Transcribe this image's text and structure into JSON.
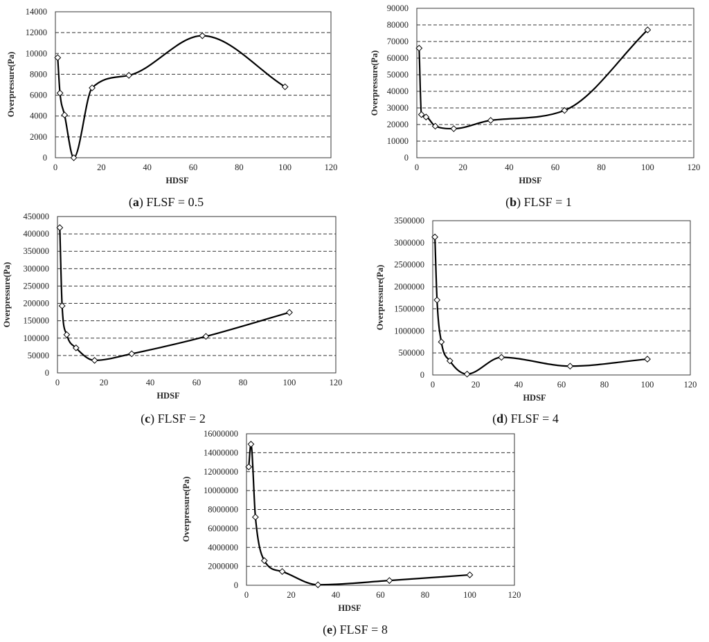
{
  "figure": {
    "panels": [
      {
        "letter": "a",
        "caption_rest": " FLSF = 0.5"
      },
      {
        "letter": "b",
        "caption_rest": " FLSF = 1"
      },
      {
        "letter": "c",
        "caption_rest": " FLSF = 2"
      },
      {
        "letter": "d",
        "caption_rest": " FLSF = 4"
      },
      {
        "letter": "e",
        "caption_rest": " FLSF = 8"
      }
    ]
  },
  "chart_data": [
    {
      "type": "line",
      "title": "(a) FLSF = 0.5",
      "xlabel": "HDSF",
      "ylabel": "Overpressure(Pa)",
      "xlim": [
        0,
        120
      ],
      "ylim": [
        0,
        14000
      ],
      "xticks": [
        0,
        20,
        40,
        60,
        80,
        100,
        120
      ],
      "yticks": [
        0,
        2000,
        4000,
        6000,
        8000,
        10000,
        12000,
        14000
      ],
      "ytick_labels": [
        "0",
        "2000",
        "4000",
        "6000",
        "8000",
        "10000",
        "12000",
        "14000"
      ],
      "grid": true,
      "x": [
        1,
        2,
        4,
        8,
        16,
        32,
        64,
        100
      ],
      "y": [
        9600,
        6200,
        4100,
        0,
        6700,
        7900,
        11700,
        6800
      ]
    },
    {
      "type": "line",
      "title": "(b) FLSF = 1",
      "xlabel": "HDSF",
      "ylabel": "Overpressure(Pa)",
      "xlim": [
        0,
        120
      ],
      "ylim": [
        0,
        90000
      ],
      "xticks": [
        0,
        20,
        40,
        60,
        80,
        100,
        120
      ],
      "yticks": [
        0,
        10000,
        20000,
        30000,
        40000,
        50000,
        60000,
        70000,
        80000,
        90000
      ],
      "ytick_labels": [
        "0",
        "10000",
        "20000",
        "30000",
        "40000",
        "50000",
        "60000",
        "70000",
        "80000",
        "90000"
      ],
      "grid": true,
      "x": [
        1,
        2,
        4,
        8,
        16,
        32,
        64,
        100
      ],
      "y": [
        66000,
        26000,
        24500,
        19000,
        17500,
        22500,
        28500,
        77000
      ]
    },
    {
      "type": "line",
      "title": "(c) FLSF = 2",
      "xlabel": "HDSF",
      "ylabel": "Overpressure(Pa)",
      "xlim": [
        0,
        120
      ],
      "ylim": [
        0,
        450000
      ],
      "xticks": [
        0,
        20,
        40,
        60,
        80,
        100,
        120
      ],
      "yticks": [
        0,
        50000,
        100000,
        150000,
        200000,
        250000,
        300000,
        350000,
        400000,
        450000
      ],
      "ytick_labels": [
        "0",
        "50000",
        "100000",
        "150000",
        "200000",
        "250000",
        "300000",
        "350000",
        "400000",
        "450000"
      ],
      "grid": true,
      "x": [
        1,
        2,
        4,
        8,
        16,
        32,
        64,
        100
      ],
      "y": [
        418000,
        193000,
        110000,
        72000,
        36000,
        55000,
        105000,
        174000
      ]
    },
    {
      "type": "line",
      "title": "(d) FLSF = 4",
      "xlabel": "HDSF",
      "ylabel": "Overpressure(Pa)",
      "xlim": [
        0,
        120
      ],
      "ylim": [
        0,
        3500000
      ],
      "xticks": [
        0,
        20,
        40,
        60,
        80,
        100,
        120
      ],
      "yticks": [
        0,
        500000,
        1000000,
        1500000,
        2000000,
        2500000,
        3000000,
        3500000
      ],
      "ytick_labels": [
        "0",
        "500000",
        "1000000",
        "1500000",
        "2000000",
        "2500000",
        "3000000",
        "3500000"
      ],
      "grid": true,
      "x": [
        1,
        2,
        4,
        8,
        16,
        32,
        64,
        100
      ],
      "y": [
        3130000,
        1700000,
        750000,
        320000,
        20000,
        400000,
        200000,
        360000
      ]
    },
    {
      "type": "line",
      "title": "(e) FLSF = 8",
      "xlabel": "HDSF",
      "ylabel": "Overpressure(Pa)",
      "xlim": [
        0,
        120
      ],
      "ylim": [
        0,
        16000000
      ],
      "xticks": [
        0,
        20,
        40,
        60,
        80,
        100,
        120
      ],
      "yticks": [
        0,
        2000000,
        4000000,
        6000000,
        8000000,
        10000000,
        12000000,
        14000000,
        16000000
      ],
      "ytick_labels": [
        "0",
        "2000000",
        "4000000",
        "6000000",
        "8000000",
        "10000000",
        "12000000",
        "14000000",
        "16000000"
      ],
      "grid": true,
      "x": [
        1,
        2,
        4,
        8,
        16,
        32,
        64,
        100
      ],
      "y": [
        12500000,
        14900000,
        7200000,
        2600000,
        1450000,
        50000,
        500000,
        1100000
      ]
    }
  ]
}
